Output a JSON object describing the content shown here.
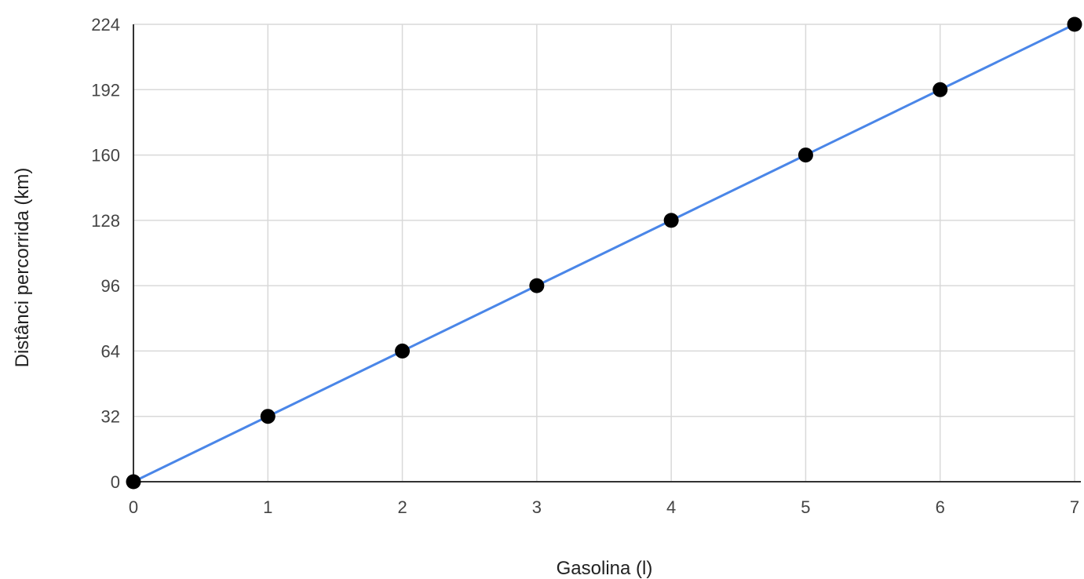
{
  "chart_data": {
    "type": "line",
    "title": "",
    "xlabel": "Gasolina (l)",
    "ylabel": "Distânci percorrida (km)",
    "xlim": [
      0,
      7
    ],
    "ylim": [
      0,
      224
    ],
    "x_ticks": [
      0,
      1,
      2,
      3,
      4,
      5,
      6,
      7
    ],
    "y_ticks": [
      0,
      32,
      64,
      96,
      128,
      160,
      192,
      224
    ],
    "grid": true,
    "legend": "none",
    "series": [
      {
        "x": [
          0,
          1,
          2,
          3,
          4,
          5,
          6,
          7
        ],
        "values": [
          0,
          32,
          64,
          96,
          128,
          160,
          192,
          224
        ],
        "line_color": "#4a86e8",
        "marker_color": "#000000"
      }
    ]
  }
}
